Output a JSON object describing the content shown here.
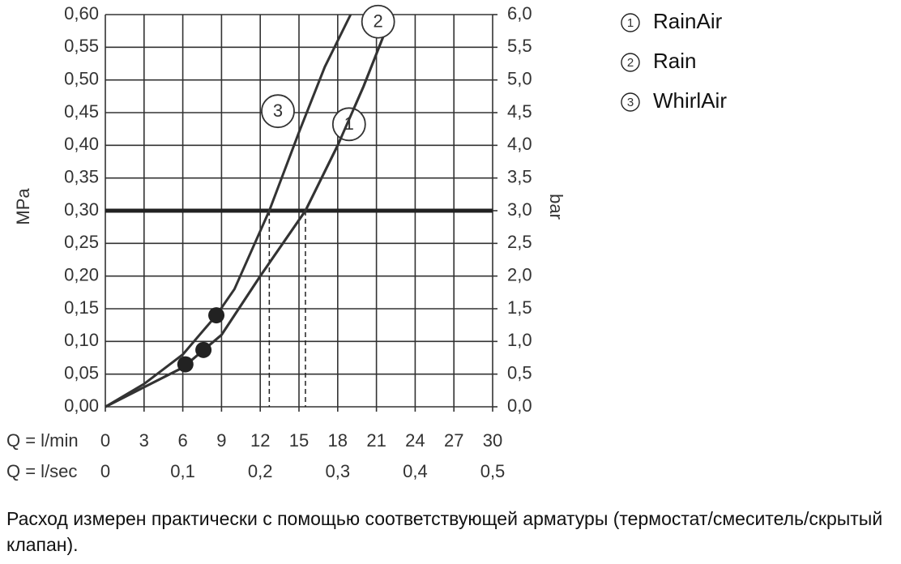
{
  "chart_data": {
    "type": "line",
    "xlabel": "Q = l/min",
    "x2label": "Q = l/sec",
    "ylabel": "MPa",
    "y2label": "bar",
    "xlim": [
      0,
      30
    ],
    "xticks": [
      0,
      3,
      6,
      9,
      12,
      15,
      18,
      21,
      24,
      27,
      30
    ],
    "x2lim": [
      0,
      0.5
    ],
    "x2ticks": [
      {
        "value": 0,
        "label": "0"
      },
      {
        "value": 0.1,
        "label": "0,1"
      },
      {
        "value": 0.2,
        "label": "0,2"
      },
      {
        "value": 0.3,
        "label": "0,3"
      },
      {
        "value": 0.4,
        "label": "0,4"
      },
      {
        "value": 0.5,
        "label": "0,5"
      }
    ],
    "ylim": [
      0,
      0.6
    ],
    "yticks": [
      {
        "value": 0,
        "label": "0,00"
      },
      {
        "value": 0.05,
        "label": "0,05"
      },
      {
        "value": 0.1,
        "label": "0,10"
      },
      {
        "value": 0.15,
        "label": "0,15"
      },
      {
        "value": 0.2,
        "label": "0,20"
      },
      {
        "value": 0.25,
        "label": "0,25"
      },
      {
        "value": 0.3,
        "label": "0,30"
      },
      {
        "value": 0.35,
        "label": "0,35"
      },
      {
        "value": 0.4,
        "label": "0,40"
      },
      {
        "value": 0.45,
        "label": "0,45"
      },
      {
        "value": 0.5,
        "label": "0,50"
      },
      {
        "value": 0.55,
        "label": "0,55"
      },
      {
        "value": 0.6,
        "label": "0,60"
      }
    ],
    "y2lim": [
      0,
      6
    ],
    "y2ticks": [
      {
        "value": 0,
        "label": "0,0"
      },
      {
        "value": 0.5,
        "label": "0,5"
      },
      {
        "value": 1,
        "label": "1,0"
      },
      {
        "value": 1.5,
        "label": "1,5"
      },
      {
        "value": 2,
        "label": "2,0"
      },
      {
        "value": 2.5,
        "label": "2,5"
      },
      {
        "value": 3,
        "label": "3,0"
      },
      {
        "value": 3.5,
        "label": "3,5"
      },
      {
        "value": 4,
        "label": "4,0"
      },
      {
        "value": 4.5,
        "label": "4,5"
      },
      {
        "value": 5,
        "label": "5,0"
      },
      {
        "value": 5.5,
        "label": "5,5"
      },
      {
        "value": 6,
        "label": "6,0"
      }
    ],
    "grid": true,
    "color": "#333333",
    "series": [
      {
        "name": "RainAir",
        "label": "1",
        "x": [
          0,
          3,
          6,
          9,
          12,
          15.5,
          18,
          20,
          22.2
        ],
        "values": [
          0,
          0.03,
          0.06,
          0.11,
          0.2,
          0.3,
          0.4,
          0.49,
          0.6
        ]
      },
      {
        "name": "Rain",
        "label": "2",
        "x": [
          0,
          3,
          6,
          9,
          12,
          15.5,
          18,
          20,
          22.2
        ],
        "values": [
          0,
          0.03,
          0.06,
          0.11,
          0.2,
          0.3,
          0.4,
          0.49,
          0.6
        ]
      },
      {
        "name": "WhirlAir",
        "label": "3",
        "x": [
          0,
          3,
          6,
          8.6,
          10,
          12.7,
          15,
          17,
          19
        ],
        "values": [
          0,
          0.035,
          0.08,
          0.14,
          0.18,
          0.3,
          0.42,
          0.52,
          0.6
        ]
      }
    ],
    "points": {
      "x": [
        6.2,
        7.6,
        8.6
      ],
      "values": [
        0.065,
        0.087,
        0.14
      ]
    },
    "reference_line": 0.3,
    "dashed_x": [
      12.7,
      15.5
    ],
    "note": "Расход измерен практически с помощью соответствующей арматуры (термостат/смеситель/скрытый клапан)."
  }
}
